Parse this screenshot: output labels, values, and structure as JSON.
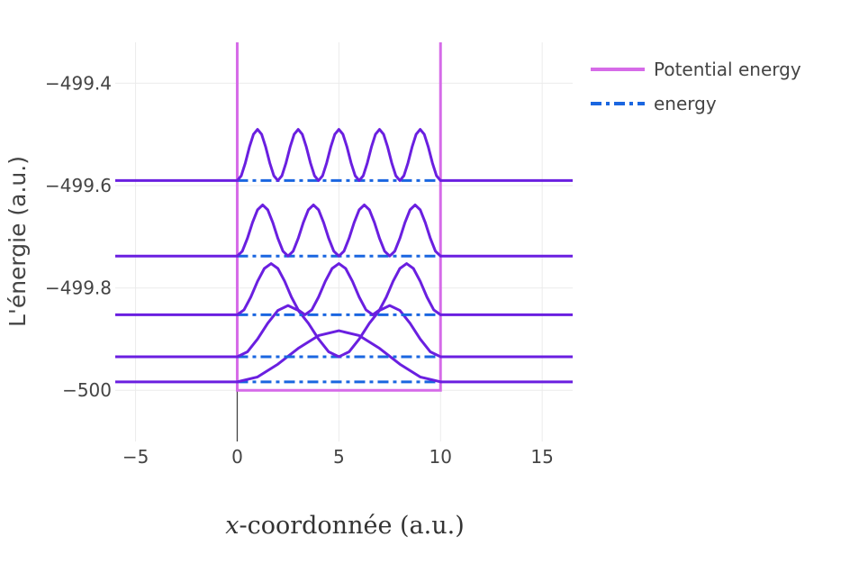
{
  "chart_data": {
    "type": "line",
    "title": "",
    "xlabel_var": "x",
    "xlabel_rest": "-coordonnée (a.u.)",
    "ylabel": "L'énergie (a.u.)",
    "xlim": [
      -6.0,
      16.5
    ],
    "ylim": [
      -500.1,
      -499.32
    ],
    "x_ticks": [
      -5,
      0,
      5,
      10,
      15
    ],
    "x_tick_labels": [
      "−5",
      "0",
      "5",
      "10",
      "15"
    ],
    "y_ticks": [
      -500,
      -499.8,
      -499.6,
      -499.4
    ],
    "y_tick_labels": [
      "−500",
      "−499.8",
      "−499.6",
      "−499.4"
    ],
    "grid": true,
    "legend_position": "top-right",
    "legend": [
      {
        "name": "Potential energy",
        "style": "solid",
        "color": "#d66be8"
      },
      {
        "name": "energy",
        "style": "dashdot",
        "color": "#1a66e0"
      }
    ],
    "potential": {
      "x": [
        0,
        0,
        10,
        10
      ],
      "y": [
        -499.3,
        -500.0,
        -500.0,
        -499.3
      ],
      "color": "#d66be8"
    },
    "energy_levels": [
      {
        "n": 1,
        "energy": -499.9835
      },
      {
        "n": 2,
        "energy": -499.9344
      },
      {
        "n": 3,
        "energy": -499.8524
      },
      {
        "n": 4,
        "energy": -499.7377
      },
      {
        "n": 5,
        "energy": -499.5901
      }
    ],
    "energy_line_x": [
      0,
      10
    ],
    "energy_color": "#1a66e0",
    "wavefunction_amplitude": 0.1,
    "wavefunction_color": "#6a1fe0",
    "y_axis_line_x": 0
  }
}
